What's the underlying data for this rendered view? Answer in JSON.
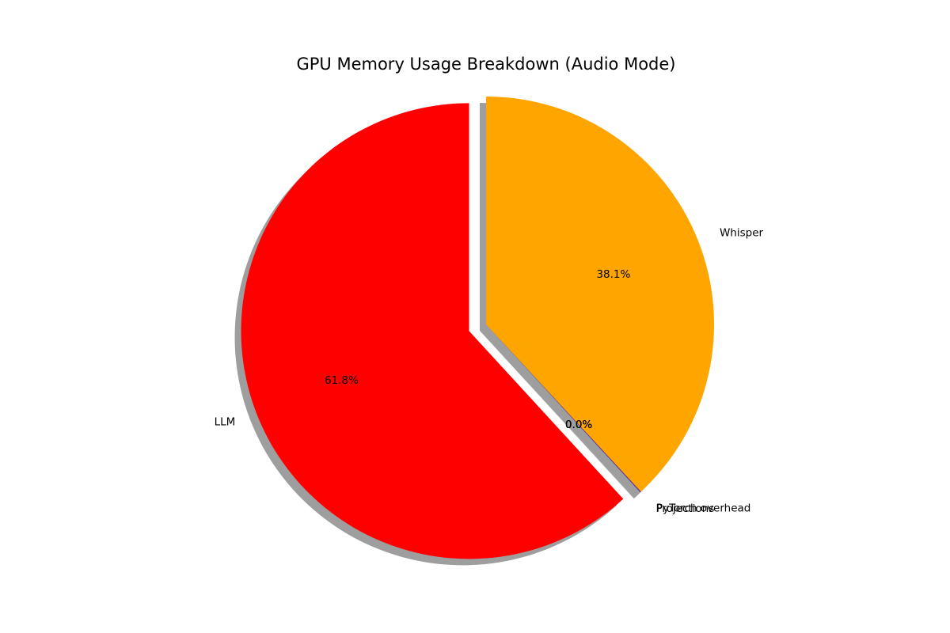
{
  "chart_data": {
    "type": "pie",
    "title": "GPU Memory Usage Breakdown (Audio Mode)",
    "start_angle_deg": 90,
    "direction": "counterclockwise",
    "shadow": true,
    "slices": [
      {
        "label": "LLM",
        "value": 61.8,
        "pct_label": "61.8%",
        "color": "#ff0000",
        "explode": 0.08
      },
      {
        "label": "Projections",
        "value": 0.03,
        "pct_label": "0.0%",
        "color": "#1f3fbf",
        "explode": 0
      },
      {
        "label": "PyTorch overhead",
        "value": 0.04,
        "pct_label": "0.0%",
        "color": "#800080",
        "explode": 0
      },
      {
        "label": "Whisper",
        "value": 38.1,
        "pct_label": "38.1%",
        "color": "#ffa500",
        "explode": 0
      }
    ]
  }
}
